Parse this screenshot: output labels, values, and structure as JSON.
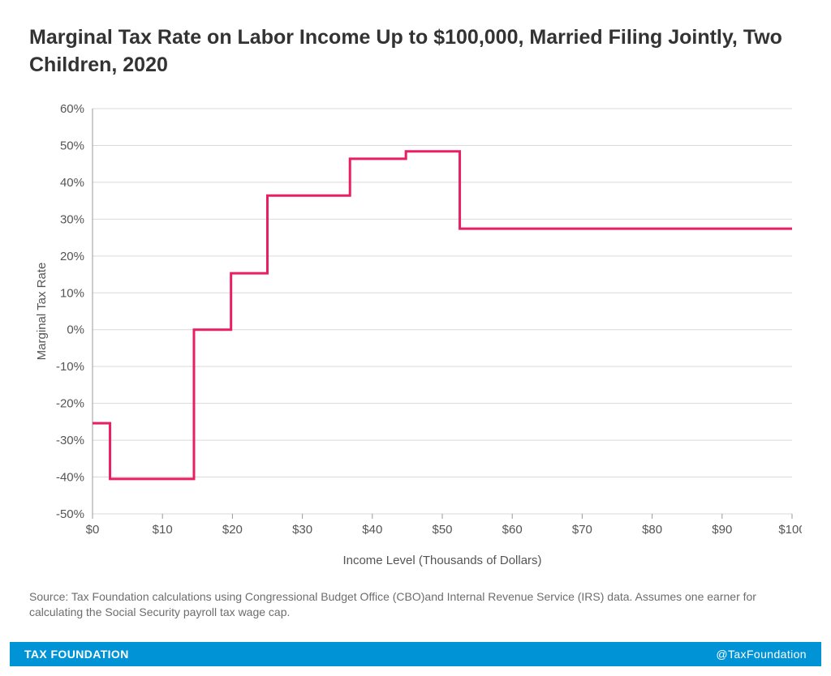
{
  "title": "Marginal Tax Rate on Labor Income Up to $100,000, Married Filing Jointly, Two Children, 2020",
  "source": "Source: Tax Foundation calculations using Congressional Budget Office (CBO)and Internal Revenue Service (IRS) data. Assumes one earner for calculating the Social Security payroll tax wage cap.",
  "footer_left": "TAX FOUNDATION",
  "footer_right": "@TaxFoundation",
  "chart": {
    "type": "step-line",
    "xlabel": "Income Level (Thousands of Dollars)",
    "ylabel": "Marginal Tax Rate",
    "xlim": [
      0,
      100
    ],
    "ylim": [
      -50,
      60
    ],
    "xtick_step": 10,
    "ytick_step": 10,
    "xtick_prefix": "$",
    "ytick_suffix": "%",
    "background_color": "#ffffff",
    "grid_color": "#d9d9d9",
    "axis_color": "#999999",
    "tick_label_color": "#555555",
    "axis_label_color": "#555555",
    "line_color": "#e91e63",
    "line_width": 3,
    "tick_fontsize": 15,
    "label_fontsize": 15,
    "steps": [
      {
        "x_from": 0,
        "x_to": 2.5,
        "y": -25.4
      },
      {
        "x_from": 2.5,
        "x_to": 14.5,
        "y": -40.5
      },
      {
        "x_from": 14.5,
        "x_to": 19.8,
        "y": 0.0
      },
      {
        "x_from": 19.8,
        "x_to": 25.0,
        "y": 15.3
      },
      {
        "x_from": 25.0,
        "x_to": 36.8,
        "y": 36.4
      },
      {
        "x_from": 36.8,
        "x_to": 44.8,
        "y": 46.4
      },
      {
        "x_from": 44.8,
        "x_to": 52.5,
        "y": 48.4
      },
      {
        "x_from": 52.5,
        "x_to": 100,
        "y": 27.4
      }
    ]
  }
}
